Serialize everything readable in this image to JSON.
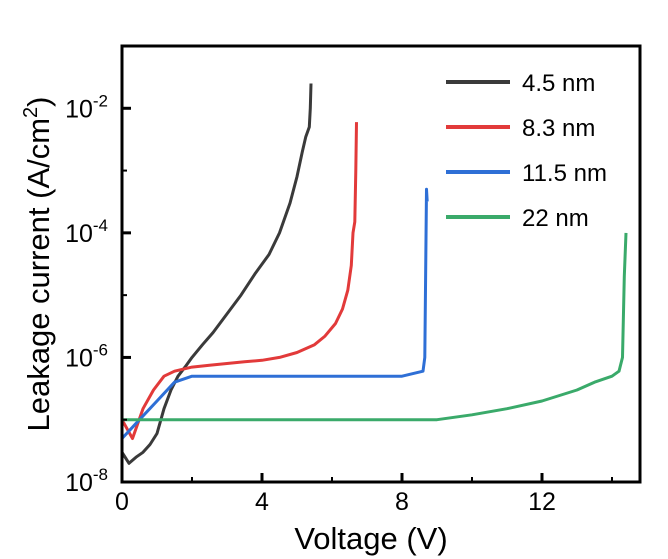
{
  "chart_data": {
    "type": "line",
    "title": "",
    "xlabel": "Voltage (V)",
    "ylabel": "Leakage current (A/cm²)",
    "ylabel_base": "Leakage current (A/cm",
    "ylabel_sup": "2",
    "ylabel_end": ")",
    "xlim": [
      0,
      14.8
    ],
    "ylim": [
      1e-08,
      0.1
    ],
    "yscale": "log",
    "xticks": [
      0,
      4,
      8,
      12
    ],
    "xtick_labels": [
      "0",
      "4",
      "8",
      "12"
    ],
    "yticks": [
      1e-08,
      1e-06,
      0.0001,
      0.01
    ],
    "ytick_labels": [
      {
        "base": "10",
        "exp": "-8"
      },
      {
        "base": "10",
        "exp": "-6"
      },
      {
        "base": "10",
        "exp": "-4"
      },
      {
        "base": "10",
        "exp": "-2"
      }
    ],
    "grid": false,
    "legend_position": "top-right",
    "series": [
      {
        "name": "4.5 nm",
        "color": "#3a3a3a",
        "x": [
          0,
          0.2,
          0.4,
          0.6,
          0.8,
          1.0,
          1.2,
          1.4,
          1.6,
          1.8,
          2.0,
          2.3,
          2.6,
          3.0,
          3.4,
          3.8,
          4.2,
          4.5,
          4.8,
          5.0,
          5.15,
          5.25,
          5.35,
          5.38,
          5.4
        ],
        "y": [
          3e-08,
          2e-08,
          2.5e-08,
          3e-08,
          4e-08,
          6e-08,
          1.5e-07,
          3e-07,
          5e-07,
          7e-07,
          1e-06,
          1.6e-06,
          2.5e-06,
          5e-06,
          1e-05,
          2.2e-05,
          4.5e-05,
          0.0001,
          0.0003,
          0.0008,
          0.002,
          0.0035,
          0.005,
          0.01,
          0.025
        ]
      },
      {
        "name": "8.3 nm",
        "color": "#e23a3a",
        "x": [
          0,
          0.3,
          0.6,
          0.9,
          1.2,
          1.5,
          2.0,
          2.5,
          3.0,
          3.5,
          4.0,
          4.5,
          5.0,
          5.5,
          5.8,
          6.1,
          6.3,
          6.45,
          6.55,
          6.6,
          6.65,
          6.68,
          6.7
        ],
        "y": [
          1e-07,
          5e-08,
          1.5e-07,
          3e-07,
          5e-07,
          6e-07,
          7e-07,
          7.5e-07,
          8e-07,
          8.5e-07,
          9e-07,
          1e-06,
          1.2e-06,
          1.6e-06,
          2.2e-06,
          3.5e-06,
          6e-06,
          1.2e-05,
          3e-05,
          0.0001,
          0.00015,
          0.001,
          0.006
        ]
      },
      {
        "name": "11.5 nm",
        "color": "#2e6fd6",
        "x": [
          0,
          0.5,
          1.0,
          1.5,
          2.0,
          3.0,
          4.0,
          5.0,
          6.0,
          7.0,
          8.0,
          8.6,
          8.65,
          8.7,
          8.72
        ],
        "y": [
          5e-08,
          1e-07,
          2e-07,
          4e-07,
          5e-07,
          5e-07,
          5e-07,
          5e-07,
          5e-07,
          5e-07,
          5e-07,
          6e-07,
          1e-06,
          0.0005,
          0.00032
        ]
      },
      {
        "name": "22 nm",
        "color": "#3aaa6a",
        "x": [
          0,
          1.0,
          2.0,
          3.0,
          4.0,
          5.0,
          6.0,
          7.0,
          8.0,
          9.0,
          10.0,
          11.0,
          12.0,
          13.0,
          13.5,
          14.0,
          14.2,
          14.3,
          14.35,
          14.4
        ],
        "y": [
          1e-07,
          1e-07,
          1e-07,
          1e-07,
          1e-07,
          1e-07,
          1e-07,
          1e-07,
          1e-07,
          1e-07,
          1.2e-07,
          1.5e-07,
          2e-07,
          3e-07,
          4e-07,
          5e-07,
          6e-07,
          1e-06,
          2e-05,
          0.0001
        ]
      }
    ]
  }
}
